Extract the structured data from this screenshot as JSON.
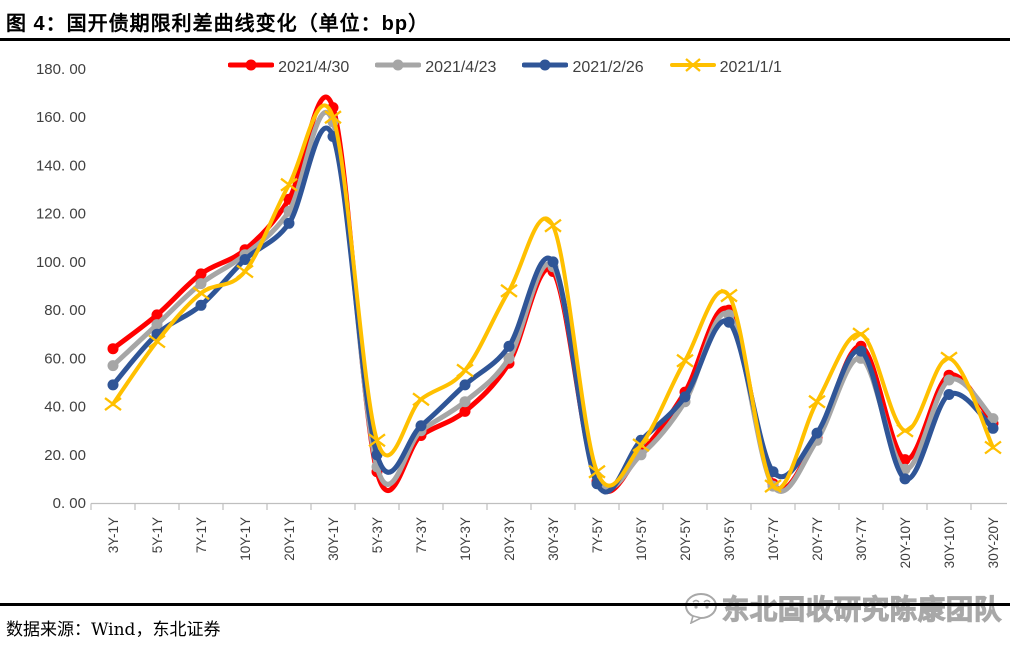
{
  "header": {
    "title": "图 4：国开债期限利差曲线变化（单位：bp）"
  },
  "source_note": "数据来源：Wind，东北证券",
  "watermark": {
    "text": "东北固收研究陈康团队",
    "icon": "chat-bubble-face-icon"
  },
  "colors": {
    "axis_line": "#bfbfbf",
    "tick_label": "#404040",
    "frame_line": "#000000",
    "background": "#ffffff"
  },
  "chart_data": {
    "type": "line",
    "title": "图 4：国开债期限利差曲线变化（单位：bp）",
    "unit": "bp",
    "smooth": true,
    "grid": false,
    "legend_position": "top",
    "categories": [
      "3Y-1Y",
      "5Y-1Y",
      "7Y-1Y",
      "10Y-1Y",
      "20Y-1Y",
      "30Y-1Y",
      "5Y-3Y",
      "7Y-3Y",
      "10Y-3Y",
      "20Y-3Y",
      "30Y-3Y",
      "7Y-5Y",
      "10Y-5Y",
      "20Y-5Y",
      "30Y-5Y",
      "10Y-7Y",
      "20Y-7Y",
      "30Y-7Y",
      "20Y-10Y",
      "30Y-10Y",
      "30Y-20Y"
    ],
    "series": [
      {
        "name": "2021/4/30",
        "color": "#FF0000",
        "marker": "circle",
        "values": [
          64,
          78,
          95,
          105,
          126,
          164,
          13,
          28,
          38,
          58,
          96,
          9,
          21,
          46,
          80,
          8,
          27,
          65,
          18,
          53,
          33
        ]
      },
      {
        "name": "2021/4/23",
        "color": "#A6A6A6",
        "marker": "circle",
        "values": [
          57,
          74,
          91,
          103,
          121,
          158,
          15,
          30,
          42,
          60,
          98,
          11,
          20,
          42,
          78,
          7,
          26,
          60,
          14,
          51,
          35
        ]
      },
      {
        "name": "2021/2/26",
        "color": "#2F5597",
        "marker": "circle",
        "values": [
          49,
          70,
          82,
          101,
          116,
          152,
          20,
          32,
          49,
          65,
          100,
          8,
          26,
          44,
          75,
          13,
          29,
          63,
          10,
          45,
          31
        ]
      },
      {
        "name": "2021/1/1",
        "color": "#FFC000",
        "marker": "x",
        "values": [
          41,
          67,
          87,
          96,
          132,
          160,
          26,
          43,
          55,
          88,
          115,
          13,
          24,
          59,
          86,
          7,
          42,
          70,
          30,
          60,
          23
        ]
      }
    ],
    "ylim": [
      0,
      180
    ],
    "y_tick_step": 20,
    "y_tick_labels": [
      "0. 00",
      "20. 00",
      "40. 00",
      "60. 00",
      "80. 00",
      "100. 00",
      "120. 00",
      "140. 00",
      "160. 00",
      "180. 00"
    ]
  }
}
